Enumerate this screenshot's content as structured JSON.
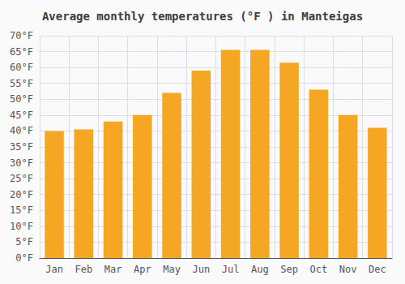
{
  "chart_data": {
    "type": "bar",
    "title": "Average monthly temperatures (°F ) in Manteigas",
    "categories": [
      "Jan",
      "Feb",
      "Mar",
      "Apr",
      "May",
      "Jun",
      "Jul",
      "Aug",
      "Sep",
      "Oct",
      "Nov",
      "Dec"
    ],
    "values": [
      40,
      40.5,
      43,
      45,
      52,
      59,
      65.5,
      65.5,
      61.5,
      53,
      45,
      41
    ],
    "color": "#F5A623",
    "ylim": [
      0,
      70
    ],
    "yticks": [
      {
        "value": 0,
        "label": "0°F"
      },
      {
        "value": 5,
        "label": "5°F"
      },
      {
        "value": 10,
        "label": "10°F"
      },
      {
        "value": 15,
        "label": "15°F"
      },
      {
        "value": 20,
        "label": "20°F"
      },
      {
        "value": 25,
        "label": "25°F"
      },
      {
        "value": 30,
        "label": "30°F"
      },
      {
        "value": 35,
        "label": "35°F"
      },
      {
        "value": 40,
        "label": "40°F"
      },
      {
        "value": 45,
        "label": "45°F"
      },
      {
        "value": 50,
        "label": "50°F"
      },
      {
        "value": 55,
        "label": "55°F"
      },
      {
        "value": 60,
        "label": "60°F"
      },
      {
        "value": 65,
        "label": "65°F"
      },
      {
        "value": 70,
        "label": "70°F"
      }
    ],
    "grid": true
  }
}
